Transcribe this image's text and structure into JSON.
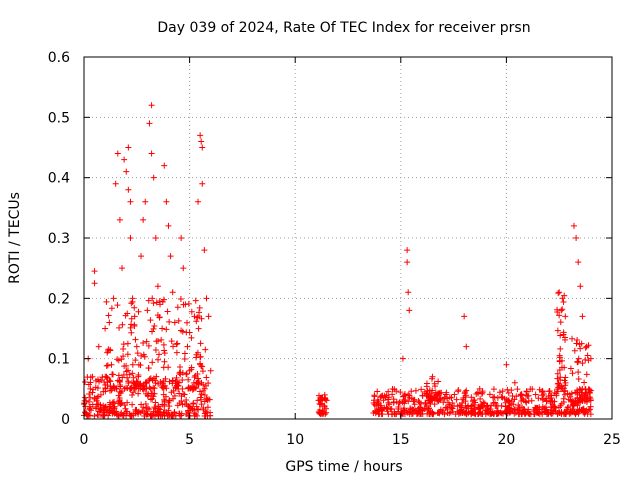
{
  "chart_data": {
    "type": "scatter",
    "title": "Day 039 of 2024, Rate Of TEC Index for receiver prsn",
    "xlabel": "GPS time / hours",
    "ylabel": "ROTI / TECUs",
    "xlim": [
      0,
      25
    ],
    "ylim": [
      0,
      0.6
    ],
    "xticks": [
      0,
      5,
      10,
      15,
      20,
      25
    ],
    "xtick_labels": [
      "0",
      "5",
      "10",
      "15",
      "20",
      "25"
    ],
    "yticks": [
      0,
      0.1,
      0.2,
      0.3,
      0.4,
      0.5,
      0.6
    ],
    "ytick_labels": [
      "0",
      "0.1",
      "0.2",
      "0.3",
      "0.4",
      "0.5",
      "0.6"
    ],
    "grid": true,
    "marker": "plus",
    "color": "#ff0000",
    "series": [
      {
        "points": [
          [
            0.1,
            0.03
          ],
          [
            0.2,
            0.1
          ],
          [
            0.3,
            0.05
          ],
          [
            0.4,
            0.07
          ],
          [
            0.5,
            0.245
          ],
          [
            0.5,
            0.225
          ],
          [
            0.7,
            0.12
          ],
          [
            0.8,
            0.04
          ],
          [
            1.0,
            0.15
          ],
          [
            1.1,
            0.11
          ],
          [
            1.2,
            0.16
          ],
          [
            1.3,
            0.09
          ],
          [
            1.4,
            0.2
          ],
          [
            1.5,
            0.39
          ],
          [
            1.6,
            0.44
          ],
          [
            1.7,
            0.33
          ],
          [
            1.8,
            0.25
          ],
          [
            1.9,
            0.43
          ],
          [
            2.0,
            0.41
          ],
          [
            2.1,
            0.45
          ],
          [
            2.1,
            0.38
          ],
          [
            2.2,
            0.36
          ],
          [
            2.2,
            0.3
          ],
          [
            2.3,
            0.2
          ],
          [
            2.4,
            0.17
          ],
          [
            2.5,
            0.12
          ],
          [
            2.6,
            0.09
          ],
          [
            2.7,
            0.27
          ],
          [
            2.8,
            0.33
          ],
          [
            2.9,
            0.36
          ],
          [
            3.0,
            0.18
          ],
          [
            3.1,
            0.49
          ],
          [
            3.2,
            0.52
          ],
          [
            3.2,
            0.44
          ],
          [
            3.3,
            0.4
          ],
          [
            3.4,
            0.3
          ],
          [
            3.5,
            0.22
          ],
          [
            3.6,
            0.19
          ],
          [
            3.7,
            0.15
          ],
          [
            3.8,
            0.42
          ],
          [
            3.9,
            0.36
          ],
          [
            4.0,
            0.32
          ],
          [
            4.1,
            0.27
          ],
          [
            4.2,
            0.21
          ],
          [
            4.3,
            0.16
          ],
          [
            4.4,
            0.11
          ],
          [
            4.5,
            0.06
          ],
          [
            4.6,
            0.3
          ],
          [
            4.7,
            0.25
          ],
          [
            4.8,
            0.19
          ],
          [
            4.9,
            0.12
          ],
          [
            5.0,
            0.08
          ],
          [
            5.2,
            0.05
          ],
          [
            5.4,
            0.36
          ],
          [
            5.5,
            0.47
          ],
          [
            5.55,
            0.46
          ],
          [
            5.6,
            0.45
          ],
          [
            5.6,
            0.39
          ],
          [
            5.7,
            0.28
          ],
          [
            5.8,
            0.2
          ],
          [
            5.9,
            0.17
          ],
          [
            6.0,
            0.08
          ],
          [
            11.2,
            0.03
          ],
          [
            11.4,
            0.04
          ],
          [
            15.1,
            0.1
          ],
          [
            15.3,
            0.28
          ],
          [
            15.3,
            0.26
          ],
          [
            15.35,
            0.21
          ],
          [
            15.4,
            0.18
          ],
          [
            16.5,
            0.07
          ],
          [
            18.0,
            0.17
          ],
          [
            18.1,
            0.12
          ],
          [
            20.0,
            0.09
          ],
          [
            20.4,
            0.06
          ],
          [
            22.5,
            0.21
          ],
          [
            22.6,
            0.18
          ],
          [
            22.7,
            0.14
          ],
          [
            23.2,
            0.32
          ],
          [
            23.3,
            0.3
          ],
          [
            23.4,
            0.26
          ],
          [
            23.5,
            0.22
          ],
          [
            23.6,
            0.17
          ],
          [
            23.8,
            0.12
          ],
          [
            24.0,
            0.1
          ]
        ],
        "clusters": [
          {
            "x": [
              0.0,
              6.0
            ],
            "y": [
              0.005,
              0.07
            ],
            "count": 340
          },
          {
            "x": [
              1.0,
              5.8
            ],
            "y": [
              0.05,
              0.2
            ],
            "count": 220
          },
          {
            "x": [
              11.1,
              11.5
            ],
            "y": [
              0.008,
              0.04
            ],
            "count": 35
          },
          {
            "x": [
              13.7,
              24.0
            ],
            "y": [
              0.008,
              0.05
            ],
            "count": 620
          },
          {
            "x": [
              16.2,
              16.8
            ],
            "y": [
              0.03,
              0.07
            ],
            "count": 30
          },
          {
            "x": [
              22.4,
              22.8
            ],
            "y": [
              0.05,
              0.22
            ],
            "count": 40
          },
          {
            "x": [
              23.0,
              24.0
            ],
            "y": [
              0.03,
              0.15
            ],
            "count": 50
          }
        ]
      }
    ]
  }
}
